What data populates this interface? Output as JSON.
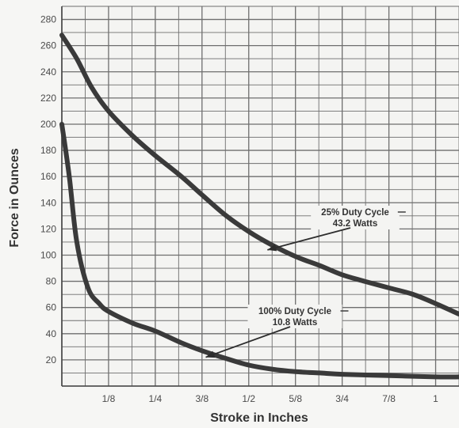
{
  "chart_data": {
    "type": "line",
    "xlabel": "Stroke in Inches",
    "ylabel": "Force in Ounces",
    "xlim": [
      0,
      1.0625
    ],
    "ylim": [
      0,
      290
    ],
    "grid": true,
    "x_tick_values": [
      0.125,
      0.25,
      0.375,
      0.5,
      0.625,
      0.75,
      0.875,
      1
    ],
    "x_tick_labels": [
      "1/8",
      "1/4",
      "3/8",
      "1/2",
      "5/8",
      "3/4",
      "7/8",
      "1"
    ],
    "y_ticks": [
      20,
      40,
      60,
      80,
      100,
      120,
      140,
      160,
      180,
      200,
      220,
      240,
      260,
      280
    ],
    "series": [
      {
        "name": "25% Duty Cycle 43.2 Watts",
        "x": [
          0,
          0.04,
          0.08,
          0.125,
          0.19,
          0.25,
          0.32,
          0.375,
          0.44,
          0.5,
          0.56,
          0.625,
          0.69,
          0.75,
          0.81,
          0.875,
          0.94,
          1.0,
          1.0625
        ],
        "values": [
          268,
          250,
          228,
          210,
          191,
          176,
          160,
          146,
          130,
          118,
          108,
          99,
          92,
          85,
          80,
          75,
          70,
          63,
          55
        ]
      },
      {
        "name": "100% Duty Cycle 10.8 Watts",
        "x": [
          0,
          0.02,
          0.04,
          0.07,
          0.1,
          0.125,
          0.19,
          0.25,
          0.32,
          0.375,
          0.44,
          0.5,
          0.56,
          0.625,
          0.69,
          0.75,
          0.875,
          1.0,
          1.0625
        ],
        "values": [
          200,
          160,
          110,
          75,
          63,
          57,
          48,
          42,
          33,
          27,
          21,
          16,
          13,
          11,
          10,
          9,
          8,
          7,
          7
        ]
      }
    ],
    "annotations": [
      {
        "line1": "25% Duty Cycle",
        "line2": "43.2 Watts",
        "series": 0,
        "arrow_x": 0.55,
        "arrow_y": 104
      },
      {
        "line1": "100% Duty Cycle",
        "line2": "10.8 Watts",
        "series": 1,
        "arrow_x": 0.385,
        "arrow_y": 22
      }
    ]
  }
}
